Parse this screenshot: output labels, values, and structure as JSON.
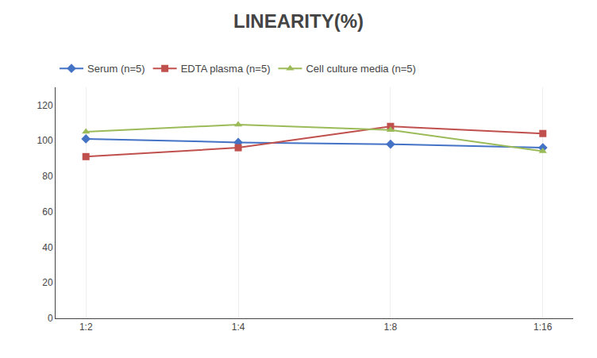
{
  "chart_data": {
    "type": "line",
    "title": "LINEARITY(%)",
    "categories": [
      "1:2",
      "1:4",
      "1:8",
      "1:16"
    ],
    "series": [
      {
        "name": "Serum (n=5)",
        "color": "#4472C4",
        "marker": "diamond",
        "values": [
          101,
          99,
          98,
          96
        ]
      },
      {
        "name": "EDTA plasma (n=5)",
        "color": "#C0504D",
        "marker": "square",
        "values": [
          91,
          96,
          108,
          104
        ]
      },
      {
        "name": "Cell culture media (n=5)",
        "color": "#9BBB59",
        "marker": "triangle-up",
        "values": [
          105,
          109,
          106,
          94
        ]
      }
    ],
    "ylim": [
      0,
      130
    ],
    "yticks": [
      0,
      20,
      40,
      60,
      80,
      100,
      120
    ],
    "grid": "x",
    "legend": "upper left"
  }
}
